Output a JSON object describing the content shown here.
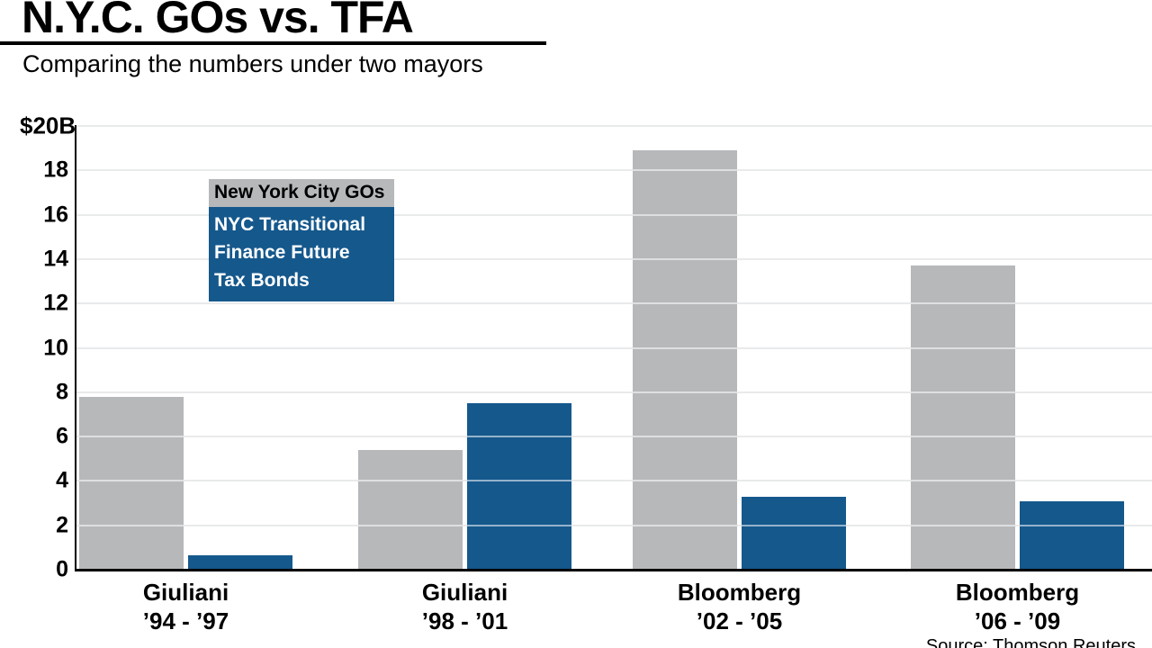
{
  "header": {
    "title": "N.Y.C. GOs vs. TFA",
    "subtitle": "Comparing the numbers under two mayors"
  },
  "legend": {
    "gos_label": "New York City GOs",
    "tfa_lines": [
      "NYC Transitional",
      "Finance Future",
      "Tax Bonds"
    ]
  },
  "source": "Source: Thomson Reuters",
  "chart_data": {
    "type": "bar",
    "categories": [
      {
        "name": "Giuliani",
        "years": "’94 - ’97"
      },
      {
        "name": "Giuliani",
        "years": "’98 - ’01"
      },
      {
        "name": "Bloomberg",
        "years": "’02 - ’05"
      },
      {
        "name": "Bloomberg",
        "years": "’06 - ’09"
      }
    ],
    "series": [
      {
        "name": "New York City GOs",
        "color": "#b6b8ba",
        "values": [
          7.8,
          5.4,
          18.9,
          13.7
        ]
      },
      {
        "name": "NYC Transitional Finance Future Tax Bonds",
        "color": "#15588c",
        "values": [
          0.65,
          7.5,
          3.3,
          3.1
        ]
      }
    ],
    "y_axis": {
      "top_label": "$20B",
      "ticks": [
        0,
        2,
        4,
        6,
        8,
        10,
        12,
        14,
        16,
        18
      ],
      "max": 20,
      "unit": "billions USD"
    },
    "grid": true,
    "legend_position": "upper-left-inside",
    "title": "N.Y.C. GOs vs. TFA",
    "subtitle": "Comparing the numbers under two mayors"
  }
}
